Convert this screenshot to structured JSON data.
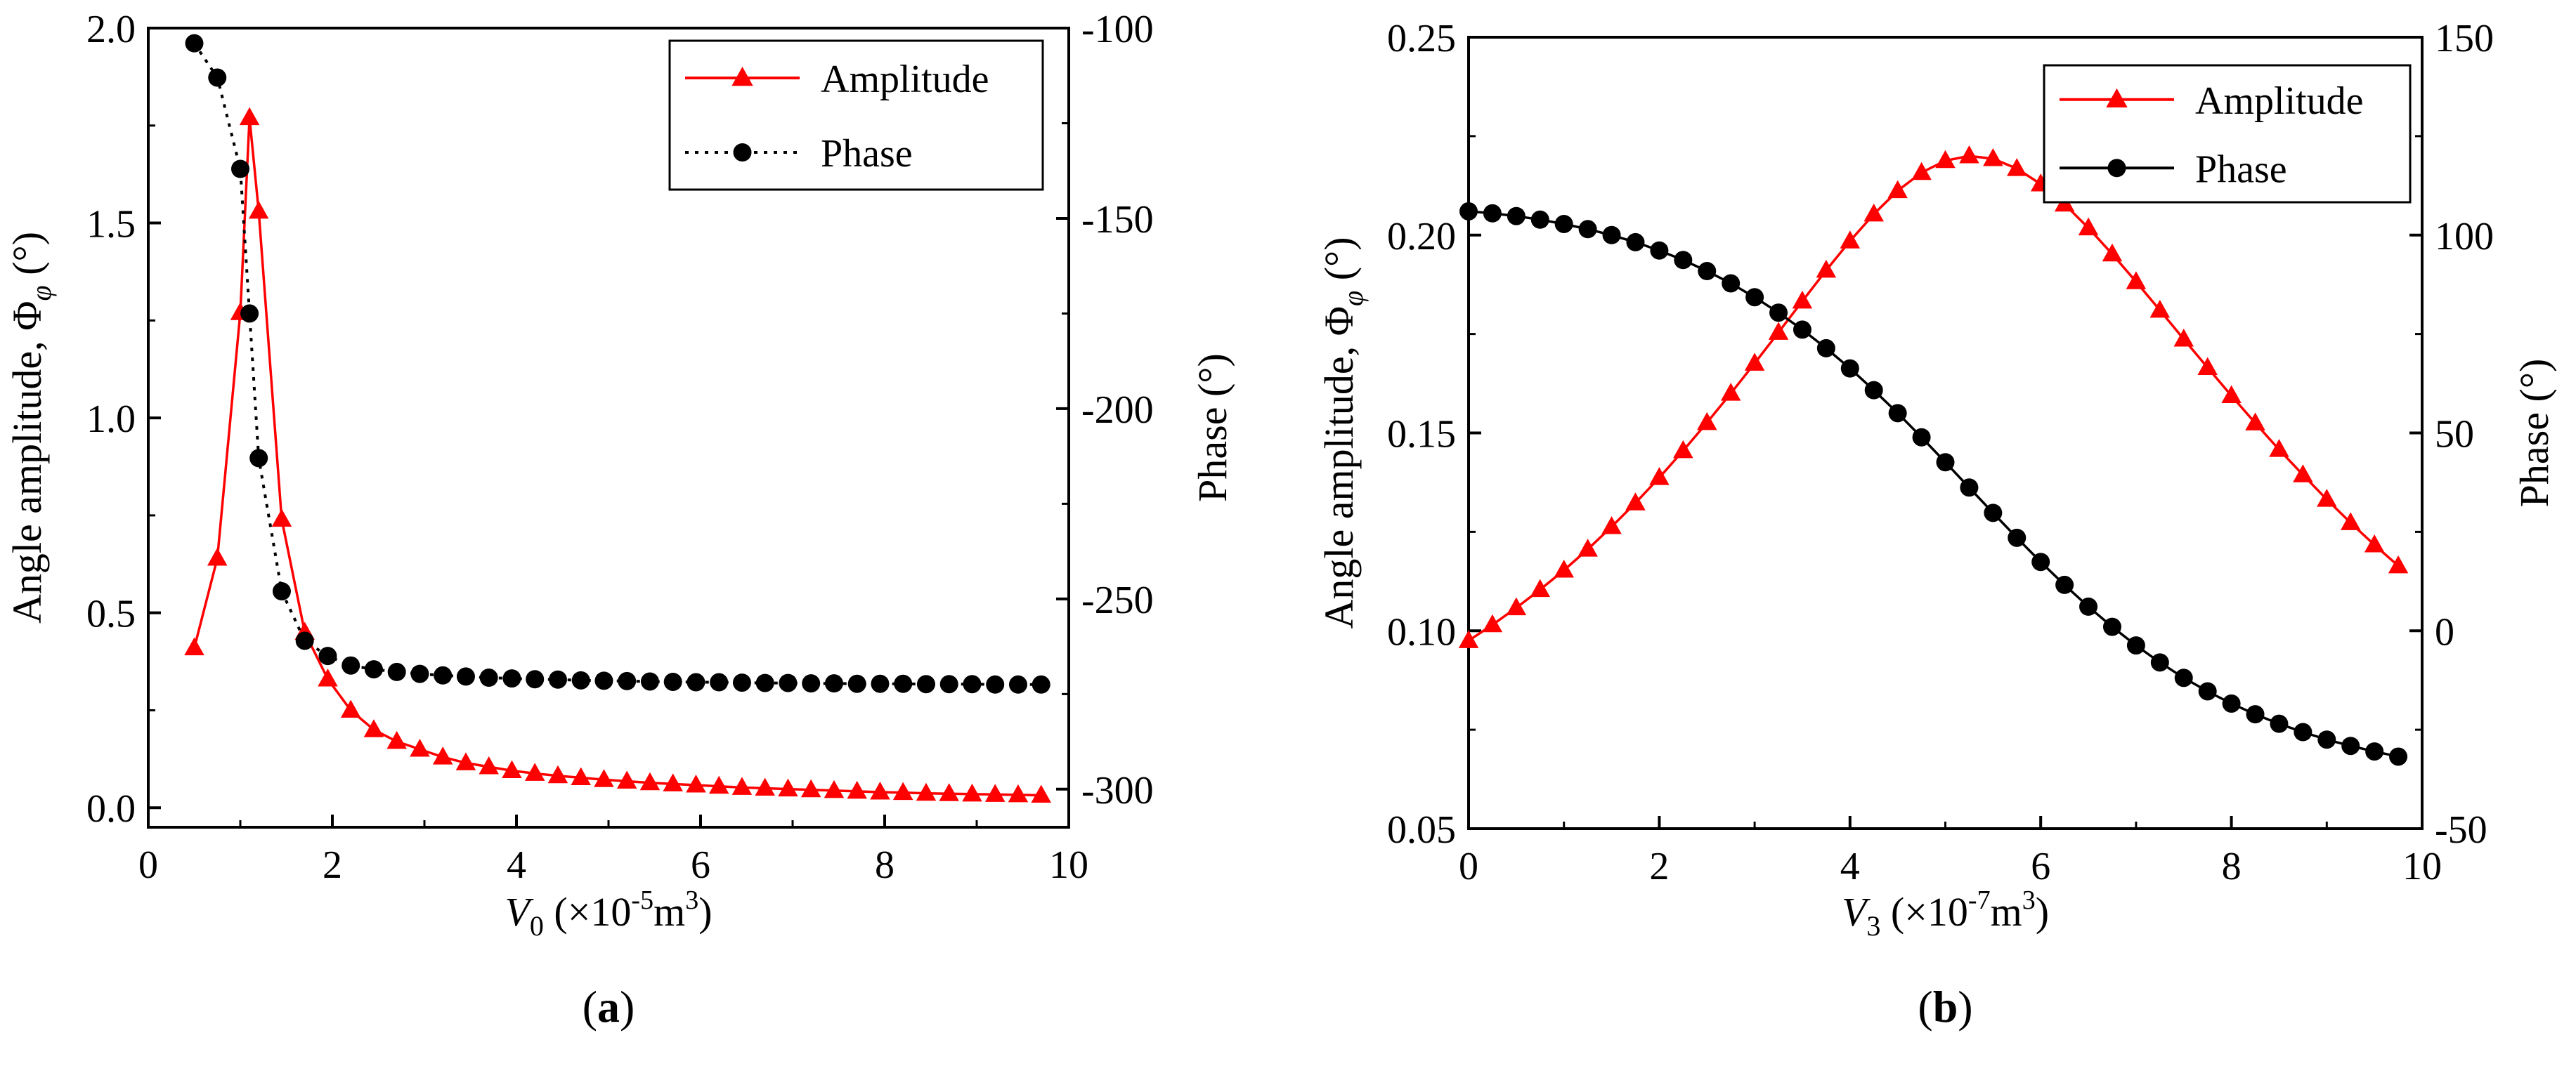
{
  "colors": {
    "amplitude": "#ff0000",
    "phase": "#000000",
    "axes": "#000000",
    "background": "#ffffff"
  },
  "chart_data": [
    {
      "type": "line",
      "panel_label": [
        "(",
        "a",
        ")"
      ],
      "x": [
        0.5,
        0.75,
        1.0,
        1.1,
        1.2,
        1.45,
        1.7,
        1.95,
        2.2,
        2.45,
        2.7,
        2.95,
        3.2,
        3.45,
        3.7,
        3.95,
        4.2,
        4.45,
        4.7,
        4.95,
        5.2,
        5.45,
        5.7,
        5.95,
        6.2,
        6.45,
        6.7,
        6.95,
        7.2,
        7.45,
        7.7,
        7.95,
        8.2,
        8.45,
        8.7,
        8.95,
        9.2,
        9.45,
        9.7
      ],
      "series": [
        {
          "name": "Amplitude",
          "axis": "left",
          "marker": "triangle",
          "line": "solid",
          "color": "#ff0000",
          "values": [
            0.41,
            0.64,
            1.27,
            1.77,
            1.53,
            0.74,
            0.45,
            0.33,
            0.25,
            0.2,
            0.17,
            0.15,
            0.13,
            0.115,
            0.105,
            0.095,
            0.088,
            0.082,
            0.077,
            0.072,
            0.068,
            0.064,
            0.061,
            0.058,
            0.055,
            0.052,
            0.05,
            0.048,
            0.046,
            0.044,
            0.042,
            0.04,
            0.039,
            0.037,
            0.036,
            0.035,
            0.034,
            0.033,
            0.032
          ]
        },
        {
          "name": "Phase",
          "axis": "right",
          "marker": "circle",
          "line": "dotted",
          "color": "#000000",
          "values": [
            -104,
            -113,
            -137,
            -175,
            -213,
            -248,
            -261,
            -265,
            -267.5,
            -268.5,
            -269.2,
            -269.7,
            -270.1,
            -270.4,
            -270.7,
            -270.9,
            -271.1,
            -271.2,
            -271.4,
            -271.5,
            -271.6,
            -271.7,
            -271.8,
            -271.9,
            -271.9,
            -272,
            -272.1,
            -272.1,
            -272.2,
            -272.2,
            -272.3,
            -272.3,
            -272.3,
            -272.4,
            -272.4,
            -272.4,
            -272.5,
            -272.5,
            -272.5
          ]
        }
      ],
      "xlabel": {
        "var": "V",
        "sub": "0",
        "unit_pre": "(×10",
        "exp": "-5",
        "unit_mid": "m",
        "exp2": "3",
        "unit_post": ")"
      },
      "ylabel_left": {
        "text": "Angle amplitude, Φ",
        "sub": "φ",
        "unit": "(°)"
      },
      "ylabel_right": "Phase (°)",
      "xlim": [
        0,
        10
      ],
      "ylim_left": [
        -0.05,
        2.0
      ],
      "ylim_right": [
        -310,
        -100
      ],
      "x_ticks": [
        "0",
        "2",
        "4",
        "6",
        "8",
        "10"
      ],
      "x_tick_values": [
        0,
        2,
        4,
        6,
        8,
        10
      ],
      "y_left_ticks": [
        "0.0",
        "0.5",
        "1.0",
        "1.5",
        "2.0"
      ],
      "y_left_tick_values": [
        0,
        0.5,
        1.0,
        1.5,
        2.0
      ],
      "y_right_ticks": [
        "-300",
        "-250",
        "-200",
        "-150",
        "-100"
      ],
      "y_right_tick_values": [
        -300,
        -250,
        -200,
        -150,
        -100
      ],
      "legend": [
        "Amplitude",
        "Phase"
      ],
      "legend_position": "top-right",
      "grid": false
    },
    {
      "type": "line",
      "panel_label": [
        "(",
        "b",
        ")"
      ],
      "x": [
        0.0,
        0.25,
        0.5,
        0.75,
        1.0,
        1.25,
        1.5,
        1.75,
        2.0,
        2.25,
        2.5,
        2.75,
        3.0,
        3.25,
        3.5,
        3.75,
        4.0,
        4.25,
        4.5,
        4.75,
        5.0,
        5.25,
        5.5,
        5.75,
        6.0,
        6.25,
        6.5,
        6.75,
        7.0,
        7.25,
        7.5,
        7.75,
        8.0,
        8.25,
        8.5,
        8.75,
        9.0,
        9.25,
        9.5,
        9.75
      ],
      "series": [
        {
          "name": "Amplitude",
          "axis": "left",
          "marker": "triangle",
          "line": "solid",
          "color": "#ff0000",
          "values": [
            0.0975,
            0.1015,
            0.1058,
            0.1104,
            0.1153,
            0.1206,
            0.1263,
            0.1323,
            0.1387,
            0.1455,
            0.1526,
            0.16,
            0.1676,
            0.1754,
            0.1833,
            0.1911,
            0.1985,
            0.2053,
            0.2112,
            0.2158,
            0.2188,
            0.22,
            0.2193,
            0.2168,
            0.2129,
            0.2078,
            0.2018,
            0.1952,
            0.1882,
            0.181,
            0.1737,
            0.1665,
            0.1594,
            0.1525,
            0.1458,
            0.1394,
            0.1332,
            0.1273,
            0.1217,
            0.1164
          ]
        },
        {
          "name": "Phase",
          "axis": "right",
          "marker": "circle",
          "line": "solid",
          "color": "#000000",
          "values": [
            106.0,
            105.5,
            104.8,
            103.9,
            102.8,
            101.5,
            100.0,
            98.2,
            96.1,
            93.7,
            90.9,
            87.8,
            84.3,
            80.4,
            76.1,
            71.4,
            66.3,
            60.8,
            55.0,
            48.9,
            42.6,
            36.2,
            29.8,
            23.5,
            17.4,
            11.6,
            6.1,
            1.0,
            -3.7,
            -8.0,
            -11.9,
            -15.3,
            -18.4,
            -21.1,
            -23.5,
            -25.6,
            -27.5,
            -29.1,
            -30.5,
            -31.8
          ]
        }
      ],
      "xlabel": {
        "var": "V",
        "sub": "3",
        "unit_pre": "(×10",
        "exp": "-7",
        "unit_mid": "m",
        "exp2": "3",
        "unit_post": ")"
      },
      "ylabel_left": {
        "text": "Angle amplitude, Φ",
        "sub": "φ",
        "unit": "(°)"
      },
      "ylabel_right": "Phase (°)",
      "xlim": [
        0,
        10
      ],
      "ylim_left": [
        0.05,
        0.25
      ],
      "ylim_right": [
        -50,
        150
      ],
      "x_ticks": [
        "0",
        "2",
        "4",
        "6",
        "8",
        "10"
      ],
      "x_tick_values": [
        0,
        2,
        4,
        6,
        8,
        10
      ],
      "y_left_ticks": [
        "0.05",
        "0.10",
        "0.15",
        "0.20",
        "0.25"
      ],
      "y_left_tick_values": [
        0.05,
        0.1,
        0.15,
        0.2,
        0.25
      ],
      "y_right_ticks": [
        "-50",
        "0",
        "50",
        "100",
        "150"
      ],
      "y_right_tick_values": [
        -50,
        0,
        50,
        100,
        150
      ],
      "legend": [
        "Amplitude",
        "Phase"
      ],
      "legend_position": "top-right",
      "grid": false
    }
  ]
}
